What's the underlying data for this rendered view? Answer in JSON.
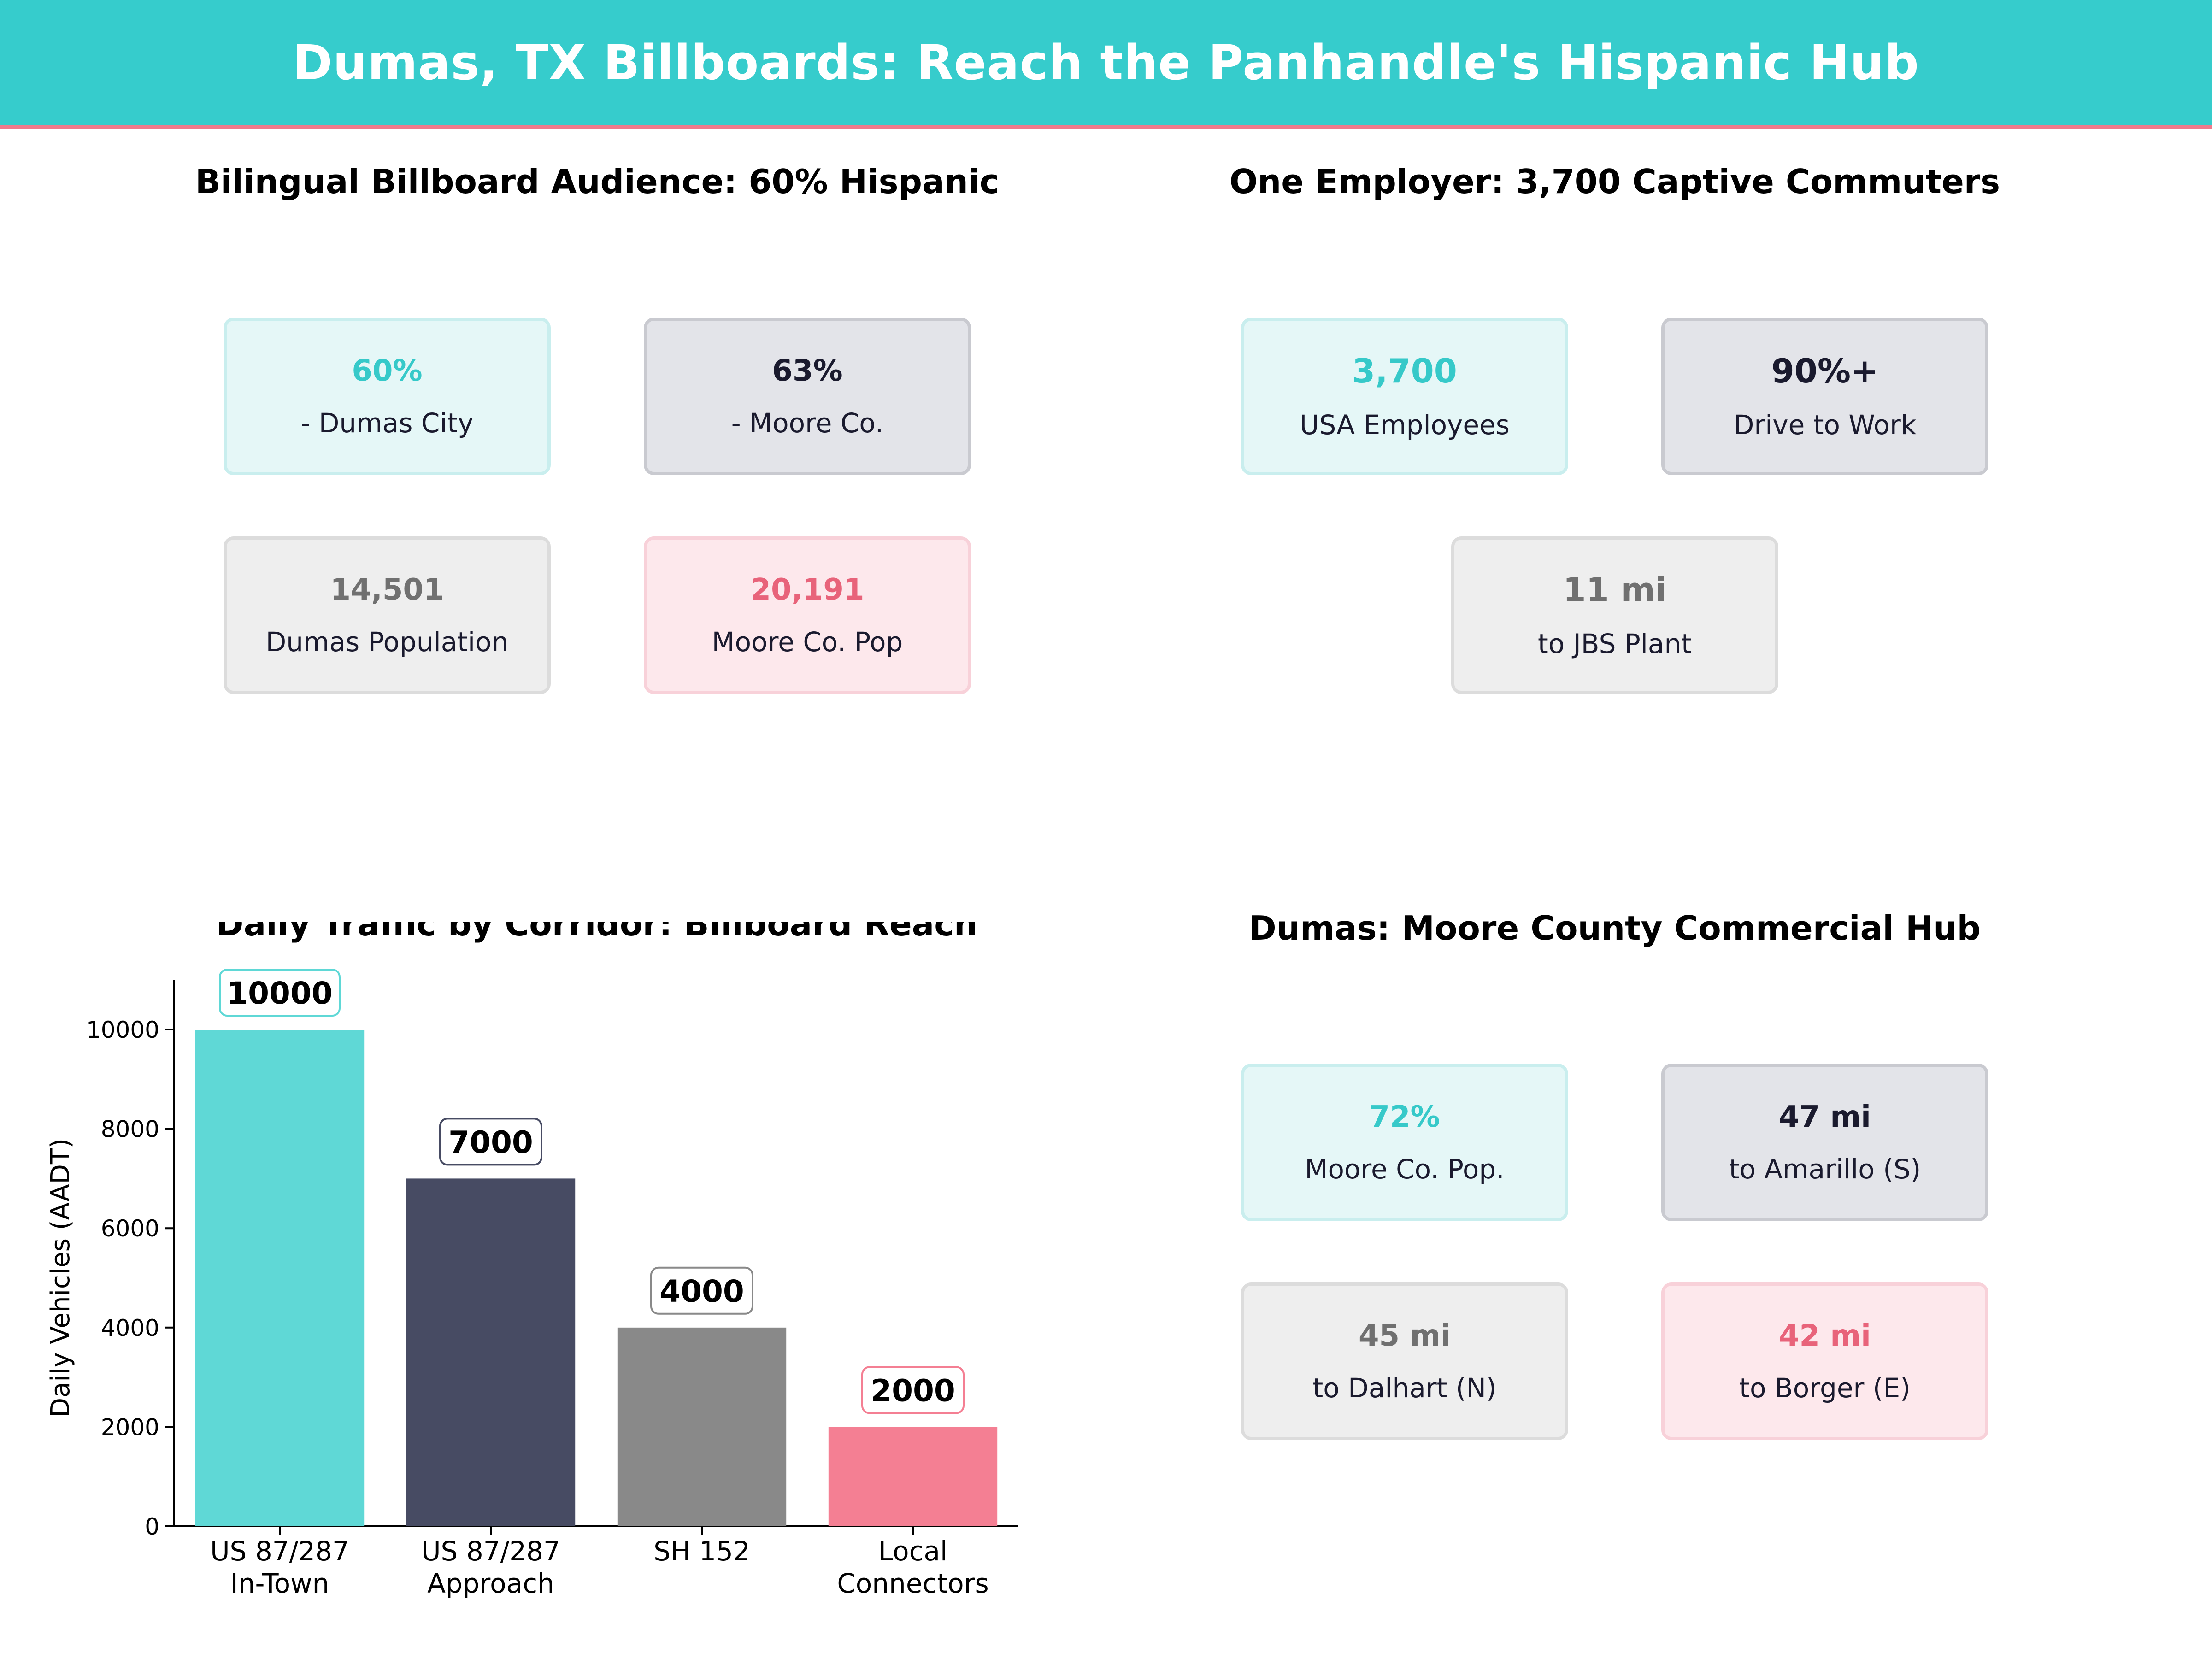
{
  "header": {
    "title": "Dumas, TX Billboards: Reach the Panhandle's Hispanic Hub"
  },
  "panels": {
    "audience": {
      "title": "Bilingual Billboard Audience: 60% Hispanic",
      "cards": [
        {
          "value": "60%",
          "label": "- Dumas City"
        },
        {
          "value": "63%",
          "label": "- Moore Co."
        },
        {
          "value": "14,501",
          "label": "Dumas Population"
        },
        {
          "value": "20,191",
          "label": "Moore Co. Pop"
        }
      ]
    },
    "employer": {
      "title": "One Employer: 3,700 Captive Commuters",
      "cards": [
        {
          "value": "3,700",
          "label": "USA Employees"
        },
        {
          "value": "90%+",
          "label": "Drive to Work"
        },
        {
          "value": "11 mi",
          "label": "to JBS Plant"
        }
      ]
    },
    "hub": {
      "title": "Dumas: Moore County Commercial Hub",
      "cards": [
        {
          "value": "72%",
          "label": "Moore Co. Pop."
        },
        {
          "value": "47 mi",
          "label": "to Amarillo (S)"
        },
        {
          "value": "45 mi",
          "label": "to Dalhart (N)"
        },
        {
          "value": "42 mi",
          "label": "to Borger (E)"
        }
      ]
    }
  },
  "chart_data": {
    "type": "bar",
    "title": "Daily Traffic by Corridor: Billboard Reach",
    "xlabel": "",
    "ylabel": "Daily Vehicles (AADT)",
    "categories": [
      [
        "US 87/287",
        "In-Town"
      ],
      [
        "US 87/287",
        "Approach"
      ],
      [
        "SH 152"
      ],
      [
        "Local",
        "Connectors"
      ]
    ],
    "values": [
      10000,
      7000,
      4000,
      2000
    ],
    "data_labels": [
      "10000",
      "7000",
      "4000",
      "2000"
    ],
    "colors": [
      "#5fd8d6",
      "#474b63",
      "#898989",
      "#f47f93"
    ],
    "label_border_colors": [
      "#5fd8d6",
      "#474b63",
      "#898989",
      "#f47f93"
    ],
    "ylim": [
      0,
      11000
    ],
    "yticks": [
      0,
      2000,
      4000,
      6000,
      8000,
      10000
    ],
    "grid": false
  }
}
